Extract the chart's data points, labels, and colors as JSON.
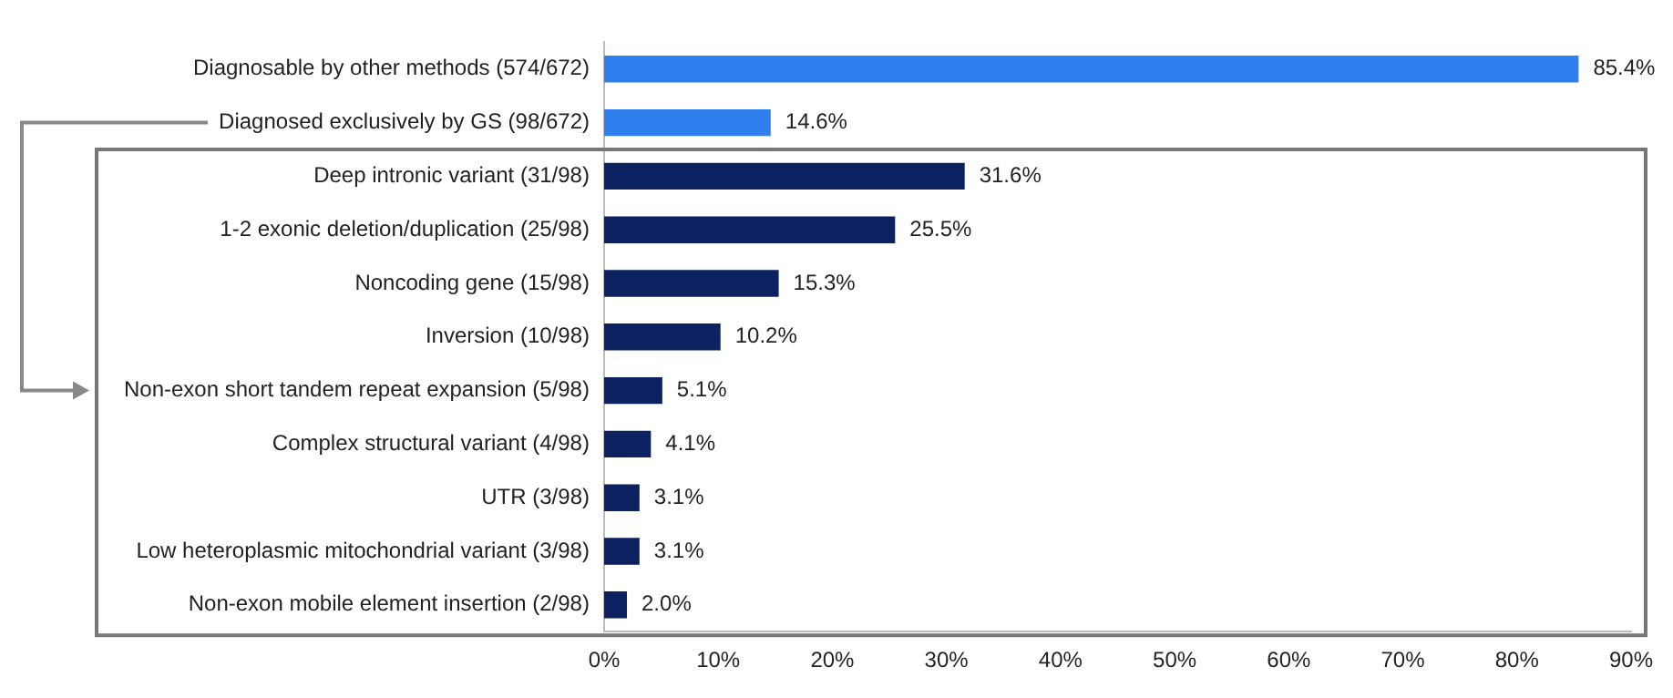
{
  "chart_data": {
    "type": "bar",
    "orientation": "horizontal",
    "categories": [
      "Diagnosable by other methods (574/672)",
      "Diagnosed exclusively by GS (98/672)",
      "Deep intronic variant (31/98)",
      "1-2 exonic deletion/duplication (25/98)",
      "Noncoding gene (15/98)",
      "Inversion (10/98)",
      "Non-exon short tandem repeat expansion (5/98)",
      "Complex structural variant (4/98)",
      "UTR (3/98)",
      "Low heteroplasmic mitochondrial variant (3/98)",
      "Non-exon mobile element insertion (2/98)"
    ],
    "values": [
      85.4,
      14.6,
      31.6,
      25.5,
      15.3,
      10.2,
      5.1,
      4.1,
      3.1,
      3.1,
      2.0
    ],
    "colors": [
      "#2f80ee",
      "#2f80ee",
      "#0b2160",
      "#0b2160",
      "#0b2160",
      "#0b2160",
      "#0b2160",
      "#0b2160",
      "#0b2160",
      "#0b2160",
      "#0b2160"
    ],
    "value_labels": [
      "85.4%",
      "14.6%",
      "31.6%",
      "25.5%",
      "15.3%",
      "10.2%",
      "5.1%",
      "4.1%",
      "3.1%",
      "3.1%",
      "2.0%"
    ],
    "xlim": [
      0,
      90
    ],
    "xticks": [
      {
        "value": 0,
        "label": "0%"
      },
      {
        "value": 10,
        "label": "10%"
      },
      {
        "value": 20,
        "label": "20%"
      },
      {
        "value": 30,
        "label": "30%"
      },
      {
        "value": 40,
        "label": "40%"
      },
      {
        "value": 50,
        "label": "50%"
      },
      {
        "value": 60,
        "label": "60%"
      },
      {
        "value": 70,
        "label": "70%"
      },
      {
        "value": 80,
        "label": "80%"
      },
      {
        "value": 90,
        "label": "90%"
      }
    ],
    "grid": false,
    "legend": false
  }
}
